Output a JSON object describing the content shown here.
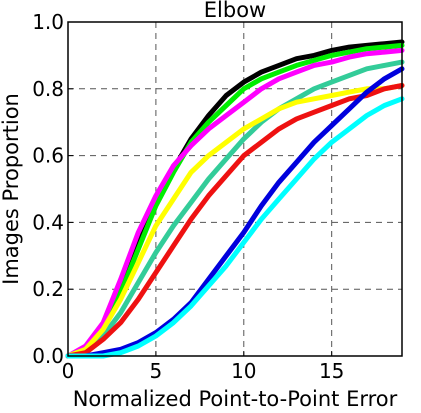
{
  "chart_data": {
    "type": "line",
    "title": "Elbow",
    "xlabel": "Normalized Point-to-Point Error",
    "ylabel": "Images Proportion",
    "xlim": [
      0,
      19
    ],
    "ylim": [
      0,
      1.0
    ],
    "xticks": [
      0,
      5,
      10,
      15
    ],
    "xtick_labels": [
      "0",
      "5",
      "10",
      "15"
    ],
    "yticks": [
      0.0,
      0.2,
      0.4,
      0.6,
      0.8,
      1.0
    ],
    "ytick_labels": [
      "0.0",
      "0.2",
      "0.4",
      "0.6",
      "0.8",
      "1.0"
    ],
    "grid": true,
    "legend": "none",
    "x": [
      0,
      1,
      2,
      3,
      4,
      5,
      6,
      7,
      8,
      9,
      10,
      11,
      12,
      13,
      14,
      15,
      16,
      17,
      18,
      19
    ],
    "series": [
      {
        "color": "#000000",
        "values": [
          0.0,
          0.02,
          0.08,
          0.2,
          0.34,
          0.46,
          0.56,
          0.65,
          0.72,
          0.78,
          0.82,
          0.85,
          0.87,
          0.89,
          0.9,
          0.915,
          0.925,
          0.93,
          0.935,
          0.94
        ]
      },
      {
        "color": "#00ee00",
        "values": [
          0.0,
          0.02,
          0.08,
          0.19,
          0.32,
          0.45,
          0.55,
          0.64,
          0.7,
          0.75,
          0.8,
          0.83,
          0.85,
          0.87,
          0.885,
          0.9,
          0.91,
          0.92,
          0.925,
          0.93
        ]
      },
      {
        "color": "#ff00ff",
        "values": [
          0.0,
          0.03,
          0.1,
          0.23,
          0.37,
          0.48,
          0.57,
          0.63,
          0.68,
          0.72,
          0.76,
          0.8,
          0.83,
          0.85,
          0.87,
          0.88,
          0.895,
          0.905,
          0.91,
          0.915
        ]
      },
      {
        "color": "#33cc99",
        "values": [
          0.0,
          0.02,
          0.06,
          0.13,
          0.22,
          0.31,
          0.39,
          0.46,
          0.53,
          0.59,
          0.65,
          0.7,
          0.74,
          0.77,
          0.8,
          0.82,
          0.84,
          0.86,
          0.87,
          0.88
        ]
      },
      {
        "color": "#ffff00",
        "values": [
          0.0,
          0.02,
          0.08,
          0.17,
          0.28,
          0.39,
          0.47,
          0.55,
          0.6,
          0.64,
          0.68,
          0.71,
          0.74,
          0.76,
          0.77,
          0.78,
          0.79,
          0.8,
          0.8,
          0.81
        ]
      },
      {
        "color": "#ee1111",
        "values": [
          0.0,
          0.01,
          0.05,
          0.1,
          0.17,
          0.25,
          0.33,
          0.41,
          0.48,
          0.54,
          0.6,
          0.64,
          0.68,
          0.71,
          0.73,
          0.75,
          0.77,
          0.78,
          0.8,
          0.81
        ]
      },
      {
        "color": "#0000dd",
        "values": [
          0.0,
          0.0,
          0.01,
          0.02,
          0.04,
          0.07,
          0.11,
          0.16,
          0.23,
          0.3,
          0.37,
          0.45,
          0.52,
          0.58,
          0.64,
          0.69,
          0.74,
          0.79,
          0.83,
          0.86
        ]
      },
      {
        "color": "#00ffff",
        "values": [
          0.0,
          0.0,
          0.0,
          0.01,
          0.03,
          0.06,
          0.1,
          0.15,
          0.21,
          0.27,
          0.34,
          0.41,
          0.47,
          0.53,
          0.59,
          0.64,
          0.68,
          0.72,
          0.75,
          0.77
        ]
      }
    ]
  }
}
